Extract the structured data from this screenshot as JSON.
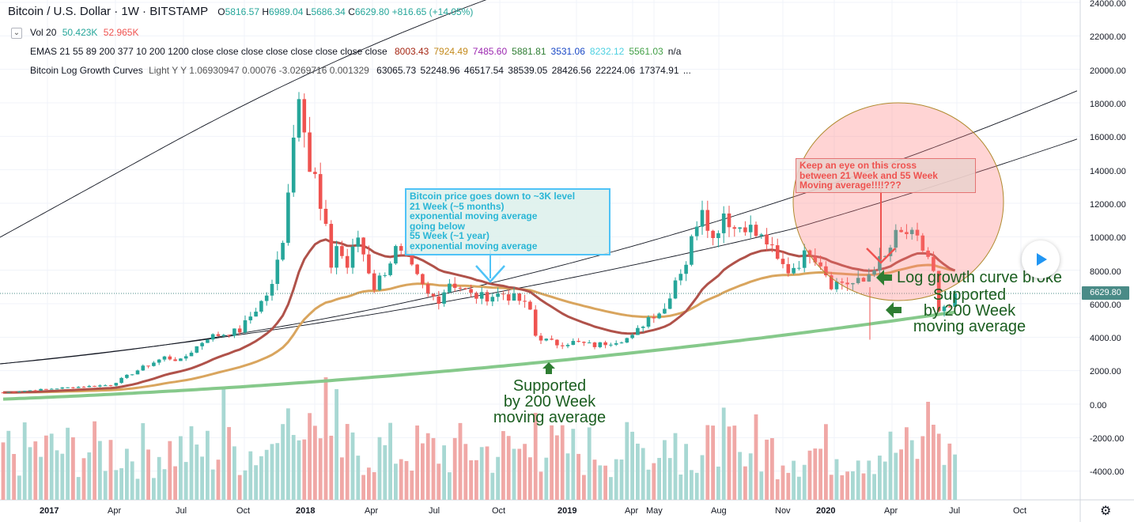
{
  "header": {
    "symbol_title": "Bitcoin / U.S. Dollar · 1W · BITSTAMP",
    "ohlc": [
      {
        "label": "O",
        "value": "5816.57"
      },
      {
        "label": "H",
        "value": "6989.04"
      },
      {
        "label": "L",
        "value": "5686.34"
      },
      {
        "label": "C",
        "value": "6629.80"
      }
    ],
    "change": "+816.65 (+14.05%)"
  },
  "indicators": {
    "vol": {
      "label": "Vol 20",
      "v1": "50.423K",
      "v2": "52.965K",
      "v1_color": "#26a69a",
      "v2_color": "#ef5350"
    },
    "emas": {
      "label": "EMAS 21 55 89 200 377 10 200 1200 close close close close close close close close",
      "values": [
        {
          "v": "8003.43",
          "color": "#a52714"
        },
        {
          "v": "7924.49",
          "color": "#c48a1c"
        },
        {
          "v": "7485.60",
          "color": "#9c27b0"
        },
        {
          "v": "5881.81",
          "color": "#2e7d32"
        },
        {
          "v": "3531.06",
          "color": "#1a49c6"
        },
        {
          "v": "8232.12",
          "color": "#4dd0e1"
        },
        {
          "v": "5561.03",
          "color": "#43a047"
        },
        {
          "v": "n/a",
          "color": "#131722"
        }
      ]
    },
    "log_growth": {
      "label": "Bitcoin Log Growth Curves",
      "params": "Light Y Y 1.06930947 0.00076 -3.0269716 0.001329",
      "values": "63065.73  52248.96  46517.54  38539.05  28426.56  22224.06  17374.91  ..."
    }
  },
  "price_axis": [
    "24000.00",
    "22000.00",
    "20000.00",
    "18000.00",
    "16000.00",
    "14000.00",
    "12000.00",
    "10000.00",
    "8000.00",
    "6000.00",
    "4000.00",
    "2000.00",
    "0.00",
    "-2000.00",
    "-4000.00"
  ],
  "time_axis": [
    "2017",
    "Apr",
    "Jul",
    "Oct",
    "2018",
    "Apr",
    "Jul",
    "Oct",
    "2019",
    "Apr",
    "May",
    "Aug",
    "Nov",
    "2020",
    "Apr",
    "Jul",
    "Oct"
  ],
  "last_price_tag": "6629.80",
  "annotations": {
    "blue_box": [
      "Bitcoin price goes down to ~3K level",
      "21 Week (~5 months)",
      "exponential moving average",
      "going below",
      "55 Week (~1 year)",
      "exponential moving average"
    ],
    "red_box": [
      "Keep an eye on this cross",
      "between 21 Week and 55 Week",
      "Moving average!!!!???"
    ],
    "support_2019": [
      "Supported",
      "by 200 Week",
      "moving average"
    ],
    "log_broke": "Log growth curve broke",
    "support_2020": [
      "Supported",
      "by 200 Week",
      "moving average"
    ]
  },
  "colors": {
    "up": "#26a69a",
    "down": "#ef5350",
    "ema21": "#b0524a",
    "ema55": "#d9a55e",
    "ema200": "#86c98b",
    "curve": "#131722",
    "annot_green": "#1b5e20"
  },
  "chart_data": {
    "type": "candlestick",
    "timeframe": "1W",
    "ylim": [
      -5000,
      24000
    ],
    "price_keypoints": [
      {
        "x": "2017-01",
        "close": 1000
      },
      {
        "x": "2017-06",
        "close": 2500
      },
      {
        "x": "2017-09",
        "close": 4000
      },
      {
        "x": "2017-11",
        "close": 10000
      },
      {
        "x": "2017-12",
        "close": 19000
      },
      {
        "x": "2018-02",
        "close": 10000
      },
      {
        "x": "2018-04",
        "close": 9000
      },
      {
        "x": "2018-07",
        "close": 6500
      },
      {
        "x": "2018-10",
        "close": 6400
      },
      {
        "x": "2018-12",
        "close": 3500
      },
      {
        "x": "2019-03",
        "close": 4000
      },
      {
        "x": "2019-06",
        "close": 13000
      },
      {
        "x": "2019-08",
        "close": 11000
      },
      {
        "x": "2019-11",
        "close": 7500
      },
      {
        "x": "2020-02",
        "close": 10000
      },
      {
        "x": "2020-03",
        "close": 5500
      },
      {
        "x": "2020-03",
        "close": 6629.8
      }
    ]
  }
}
